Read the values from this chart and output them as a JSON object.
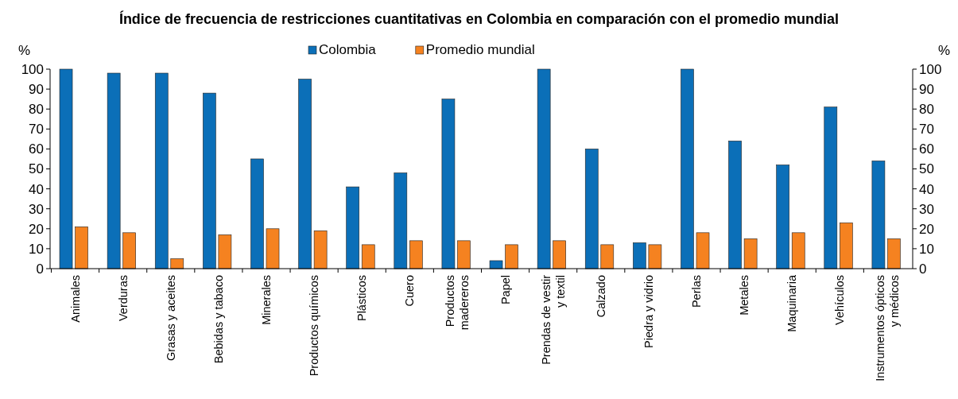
{
  "chart_data": {
    "type": "bar",
    "title": "Índice de frecuencia de restricciones cuantitativas en Colombia en comparación con el promedio mundial",
    "ylabel": "%",
    "y2label": "%",
    "categories": [
      "Animales",
      "Verduras",
      "Grasas y aceites",
      "Bebidas y tabaco",
      "Minerales",
      "Productos químicos",
      "Plásticos",
      "Cuero",
      "Productos\nmadereros",
      "Papel",
      "Prendas de vestir\ny textil",
      "Calzado",
      "Piedra y vidrio",
      "Perlas",
      "Metales",
      "Maquinaria",
      "Vehículos",
      "Instrumentos ópticos\ny médicos"
    ],
    "series": [
      {
        "name": "Colombia",
        "color": "#0b6fb8",
        "values": [
          100,
          98,
          98,
          88,
          55,
          95,
          41,
          48,
          85,
          4,
          100,
          60,
          13,
          100,
          64,
          52,
          81,
          54
        ]
      },
      {
        "name": "Promedio mundial",
        "color": "#f58220",
        "values": [
          21,
          18,
          5,
          17,
          20,
          19,
          12,
          14,
          14,
          12,
          14,
          12,
          12,
          18,
          15,
          18,
          23,
          15
        ]
      }
    ],
    "ylim": [
      0,
      100
    ],
    "yticks": [
      0,
      10,
      20,
      30,
      40,
      50,
      60,
      70,
      80,
      90,
      100
    ],
    "y2lim": [
      0,
      100
    ],
    "y2ticks": [
      0,
      10,
      20,
      30,
      40,
      50,
      60,
      70,
      80,
      90,
      100
    ],
    "legend": "top",
    "grid": false
  }
}
